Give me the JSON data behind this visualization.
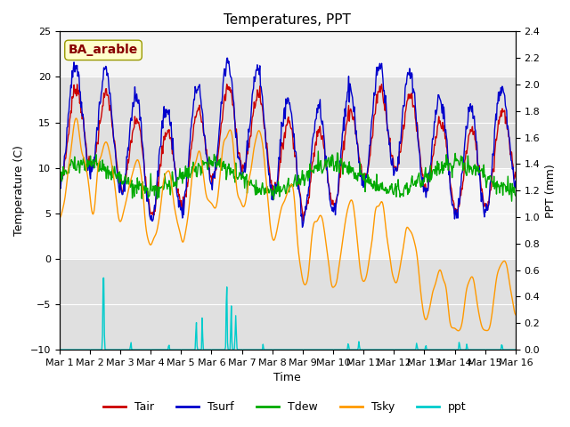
{
  "title": "Temperatures, PPT",
  "ylabel_left": "Temperature (C)",
  "ylabel_right": "PPT (mm)",
  "xlabel": "Time",
  "ylim_left": [
    -10,
    25
  ],
  "ylim_right": [
    0.0,
    2.4
  ],
  "yticks_left": [
    -10,
    -5,
    0,
    5,
    10,
    15,
    20,
    25
  ],
  "yticks_right": [
    0.0,
    0.2,
    0.4,
    0.6,
    0.8,
    1.0,
    1.2,
    1.4,
    1.6,
    1.8,
    2.0,
    2.2,
    2.4
  ],
  "xtick_labels": [
    "Mar 1",
    "Mar 2",
    "Mar 3",
    "Mar 4",
    "Mar 5",
    "Mar 6",
    "Mar 7",
    "Mar 8",
    "Mar 9",
    "Mar 10",
    "Mar 11",
    "Mar 12",
    "Mar 13",
    "Mar 14",
    "Mar 15",
    "Mar 16"
  ],
  "colors": {
    "Tair": "#cc0000",
    "Tsurf": "#0000cc",
    "Tdew": "#00aa00",
    "Tsky": "#ff9900",
    "ppt": "#00cccc"
  },
  "annotation_text": "BA_arable",
  "annotation_color": "#880000",
  "annotation_bg": "#ffffcc",
  "gray_color": "#e0e0e0",
  "title_fontsize": 11,
  "label_fontsize": 9,
  "tick_fontsize": 8
}
